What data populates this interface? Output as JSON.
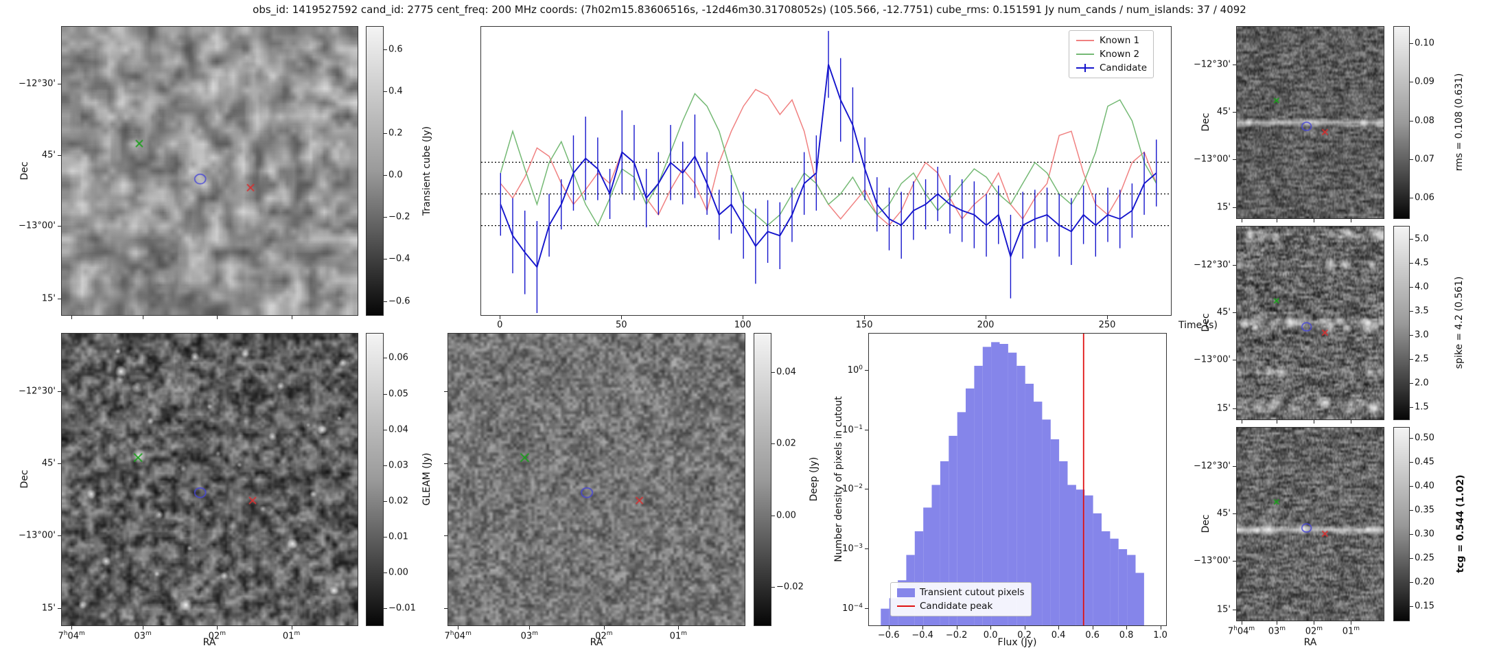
{
  "title": "obs_id: 1419527592 cand_id: 2775 cent_freq: 200 MHz coords: (7h02m15.83606516s, -12d46m30.31708052s) (105.566, -12.7751) cube_rms: 0.151591 Jy num_cands / num_islands: 37 / 4092",
  "axes": {
    "ra_label": "RA",
    "dec_label": "Dec",
    "ra_ticks": [
      "7h04m",
      "03m",
      "02m",
      "01m"
    ],
    "dec_ticks": [
      "-12°30'",
      "45'",
      "-13°00'",
      "15'"
    ]
  },
  "image_markers": {
    "green-x-marker": {
      "shape": "x",
      "color": "#18a018"
    },
    "red-x-marker": {
      "shape": "x",
      "color": "#d83030"
    },
    "candidate-circle-marker": {
      "shape": "circle",
      "color": "#4646d8"
    }
  },
  "panels": {
    "transient_cube": {
      "colorbar_label": "Transient cube (Jy)",
      "colorbar_ticks": [
        "0.6",
        "0.4",
        "0.2",
        "0.0",
        "-0.2",
        "-0.4",
        "-0.6"
      ],
      "colorbar_range": [
        -0.67,
        0.71
      ]
    },
    "gleam": {
      "colorbar_label": "GLEAM (Jy)",
      "colorbar_ticks": [
        "0.06",
        "0.05",
        "0.04",
        "0.03",
        "0.02",
        "0.01",
        "0.00",
        "-0.01"
      ],
      "colorbar_range": [
        -0.015,
        0.067
      ]
    },
    "deep": {
      "colorbar_label": "Deep (Jy)",
      "colorbar_ticks": [
        "0.04",
        "0.02",
        "0.00",
        "-0.02"
      ],
      "colorbar_range": [
        -0.031,
        0.051
      ]
    },
    "rms": {
      "colorbar_label": "rms = 0.108 (0.631)",
      "colorbar_ticks": [
        "0.10",
        "0.09",
        "0.08",
        "0.07",
        "0.06"
      ],
      "colorbar_range": [
        0.0545,
        0.1045
      ]
    },
    "spike": {
      "colorbar_label": "spike = 4.2 (0.561)",
      "colorbar_ticks": [
        "5.0",
        "4.5",
        "4.0",
        "3.5",
        "3.0",
        "2.5",
        "2.0",
        "1.5"
      ],
      "colorbar_range": [
        1.23,
        5.27
      ]
    },
    "tcg": {
      "colorbar_label": "tcg = 0.544 (1.02)",
      "bold": true,
      "colorbar_ticks": [
        "0.50",
        "0.45",
        "0.40",
        "0.35",
        "0.30",
        "0.25",
        "0.20",
        "0.15"
      ],
      "colorbar_range": [
        0.118,
        0.523
      ]
    }
  },
  "chart_data": [
    {
      "type": "line",
      "title": "",
      "xlabel": "Time (s)",
      "ylabel": "",
      "xlim": [
        -8,
        276
      ],
      "ylim": [
        -0.58,
        0.8
      ],
      "xticks": [
        0,
        50,
        100,
        150,
        200,
        250
      ],
      "hlines": [
        0.151591,
        0.0,
        -0.151591
      ],
      "legend_position": "upper right",
      "x": [
        0,
        5,
        10,
        15,
        20,
        25,
        30,
        35,
        40,
        45,
        50,
        55,
        60,
        65,
        70,
        75,
        80,
        85,
        90,
        95,
        100,
        105,
        110,
        115,
        120,
        125,
        130,
        135,
        140,
        145,
        150,
        155,
        160,
        165,
        170,
        175,
        180,
        185,
        190,
        195,
        200,
        205,
        210,
        215,
        220,
        225,
        230,
        235,
        240,
        245,
        250,
        255,
        260,
        265,
        270
      ],
      "series": [
        {
          "name": "Known 1",
          "color": "#f08080",
          "values": [
            0.05,
            -0.02,
            0.08,
            0.22,
            0.18,
            0.05,
            -0.05,
            0.02,
            0.1,
            0.05,
            0.2,
            0.15,
            -0.02,
            -0.1,
            0.02,
            0.12,
            0.05,
            -0.08,
            0.15,
            0.3,
            0.42,
            0.5,
            0.47,
            0.38,
            0.45,
            0.3,
            0.05,
            -0.05,
            -0.12,
            -0.05,
            0.02,
            -0.1,
            -0.15,
            -0.08,
            0.05,
            0.15,
            0.1,
            -0.02,
            -0.12,
            -0.05,
            0.0,
            0.1,
            -0.05,
            -0.12,
            -0.02,
            0.05,
            0.28,
            0.3,
            0.1,
            -0.05,
            -0.1,
            0.0,
            0.15,
            0.2,
            0.05
          ]
        },
        {
          "name": "Known 2",
          "color": "#74b974",
          "values": [
            0.1,
            0.3,
            0.12,
            -0.05,
            0.15,
            0.25,
            0.1,
            -0.05,
            -0.15,
            -0.02,
            0.12,
            0.08,
            -0.05,
            0.05,
            0.2,
            0.35,
            0.48,
            0.42,
            0.3,
            0.1,
            -0.05,
            -0.1,
            -0.15,
            -0.1,
            0.0,
            0.1,
            0.05,
            -0.05,
            0.0,
            0.08,
            -0.02,
            -0.1,
            -0.05,
            0.05,
            0.1,
            0.0,
            -0.08,
            -0.02,
            0.05,
            0.12,
            0.08,
            0.0,
            -0.05,
            0.05,
            0.15,
            0.1,
            0.0,
            -0.05,
            0.05,
            0.2,
            0.42,
            0.45,
            0.35,
            0.15,
            0.05
          ]
        },
        {
          "name": "Candidate",
          "color": "#1414cc",
          "values": [
            -0.05,
            -0.2,
            -0.28,
            -0.35,
            -0.15,
            -0.05,
            0.1,
            0.17,
            0.12,
            0.0,
            0.2,
            0.15,
            -0.02,
            0.05,
            0.15,
            0.1,
            0.18,
            0.05,
            -0.1,
            -0.05,
            -0.15,
            -0.25,
            -0.18,
            -0.2,
            -0.1,
            0.05,
            0.1,
            0.62,
            0.45,
            0.33,
            0.12,
            -0.05,
            -0.12,
            -0.15,
            -0.08,
            -0.05,
            0.0,
            -0.05,
            -0.08,
            -0.1,
            -0.15,
            -0.1,
            -0.3,
            -0.15,
            -0.12,
            -0.1,
            -0.15,
            -0.18,
            -0.1,
            -0.15,
            -0.1,
            -0.12,
            -0.08,
            0.05,
            0.1
          ],
          "errors": [
            0.15,
            0.18,
            0.2,
            0.22,
            0.15,
            0.12,
            0.18,
            0.2,
            0.15,
            0.12,
            0.2,
            0.18,
            0.14,
            0.15,
            0.18,
            0.15,
            0.2,
            0.15,
            0.12,
            0.14,
            0.16,
            0.18,
            0.15,
            0.16,
            0.13,
            0.15,
            0.18,
            0.16,
            0.2,
            0.18,
            0.15,
            0.13,
            0.15,
            0.16,
            0.14,
            0.12,
            0.13,
            0.14,
            0.15,
            0.16,
            0.15,
            0.14,
            0.2,
            0.16,
            0.14,
            0.13,
            0.15,
            0.16,
            0.14,
            0.15,
            0.13,
            0.14,
            0.13,
            0.15,
            0.16
          ]
        }
      ]
    },
    {
      "type": "bar",
      "title": "",
      "xlabel": "Flux (Jy)",
      "ylabel": "Number density of pixels in cutout",
      "bar_color": "#8585ea",
      "peak_color": "#e01010",
      "candidate_peak": 0.544,
      "bin_start": -0.65,
      "bin_width": 0.05,
      "values": [
        0.0001,
        0.00015,
        0.0003,
        0.0008,
        0.002,
        0.005,
        0.012,
        0.03,
        0.08,
        0.2,
        0.5,
        1.2,
        2.5,
        3.0,
        2.8,
        2.0,
        1.2,
        0.6,
        0.3,
        0.15,
        0.07,
        0.03,
        0.012,
        0.01,
        0.008,
        0.004,
        0.002,
        0.0015,
        0.001,
        0.0008,
        0.0004
      ],
      "xticks": [
        "-0.6",
        "-0.4",
        "-0.2",
        "0.0",
        "0.2",
        "0.4",
        "0.6",
        "0.8",
        "1.0"
      ],
      "yticks_log": [
        -4,
        -3,
        -2,
        -1,
        0
      ],
      "xlim": [
        -0.72,
        1.03
      ],
      "ylog_lim": [
        -4.28,
        0.62
      ],
      "legend": [
        "Transient cutout pixels",
        "Candidate peak"
      ]
    }
  ]
}
